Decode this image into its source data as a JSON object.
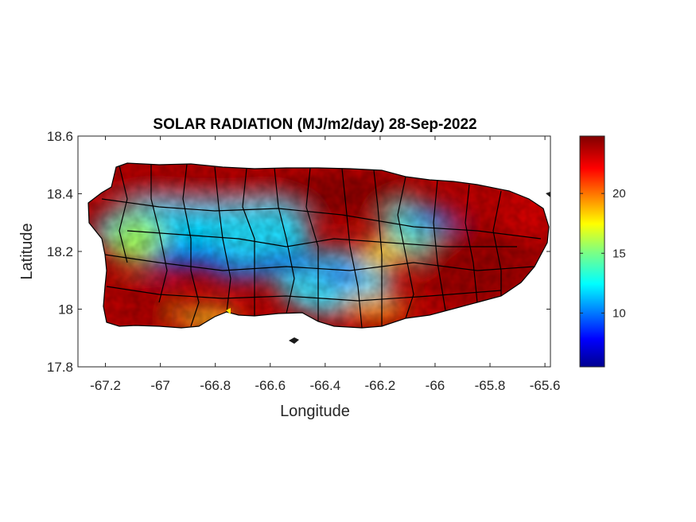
{
  "chart_data": {
    "type": "heatmap",
    "title": "SOLAR RADIATION (MJ/m2/day) 28-Sep-2022",
    "xlabel": "Longitude",
    "ylabel": "Latitude",
    "xlim": [
      -67.3,
      -65.58
    ],
    "ylim": [
      17.8,
      18.6
    ],
    "x_ticks": [
      -67.2,
      -67,
      -66.8,
      -66.6,
      -66.4,
      -66.2,
      -66,
      -65.8,
      -65.6
    ],
    "x_tick_labels": [
      "-67.2",
      "-67",
      "-66.8",
      "-66.6",
      "-66.4",
      "-66.2",
      "-66",
      "-65.8",
      "-65.6"
    ],
    "y_ticks": [
      17.8,
      18,
      18.2,
      18.4,
      18.6
    ],
    "y_tick_labels": [
      "17.8",
      "18",
      "18.2",
      "18.4",
      "18.6"
    ],
    "colorbar": {
      "colormap": "jet",
      "clim": [
        5.5,
        24.8
      ],
      "ticks": [
        10,
        15,
        20
      ],
      "tick_labels": [
        "10",
        "15",
        "20"
      ]
    },
    "field_regions": [
      {
        "kind": "low",
        "lon": -66.92,
        "lat": 18.18,
        "value": 8
      },
      {
        "kind": "low",
        "lon": -66.78,
        "lat": 18.14,
        "value": 9
      },
      {
        "kind": "low",
        "lon": -66.6,
        "lat": 18.16,
        "value": 8
      },
      {
        "kind": "low",
        "lon": -66.45,
        "lat": 18.14,
        "value": 9
      },
      {
        "kind": "low",
        "lon": -66.36,
        "lat": 18.1,
        "value": 10
      },
      {
        "kind": "low",
        "lon": -66.02,
        "lat": 18.32,
        "value": 9
      },
      {
        "kind": "mid",
        "lon": -67.05,
        "lat": 18.25,
        "value": 14
      },
      {
        "kind": "mid",
        "lon": -66.75,
        "lat": 18.28,
        "value": 15
      },
      {
        "kind": "mid",
        "lon": -66.5,
        "lat": 18.05,
        "value": 14
      },
      {
        "kind": "mid",
        "lon": -66.15,
        "lat": 18.28,
        "value": 16
      },
      {
        "kind": "high",
        "lon": -66.8,
        "lat": 18.45,
        "value": 24
      },
      {
        "kind": "high",
        "lon": -66.3,
        "lat": 18.42,
        "value": 24
      },
      {
        "kind": "high",
        "lon": -65.95,
        "lat": 18.15,
        "value": 24
      },
      {
        "kind": "high",
        "lon": -67.05,
        "lat": 17.98,
        "value": 23
      },
      {
        "kind": "high",
        "lon": -66.4,
        "lat": 17.95,
        "value": 22
      }
    ]
  },
  "colors": {
    "axis": "#262626",
    "border_lines": "#000000"
  }
}
